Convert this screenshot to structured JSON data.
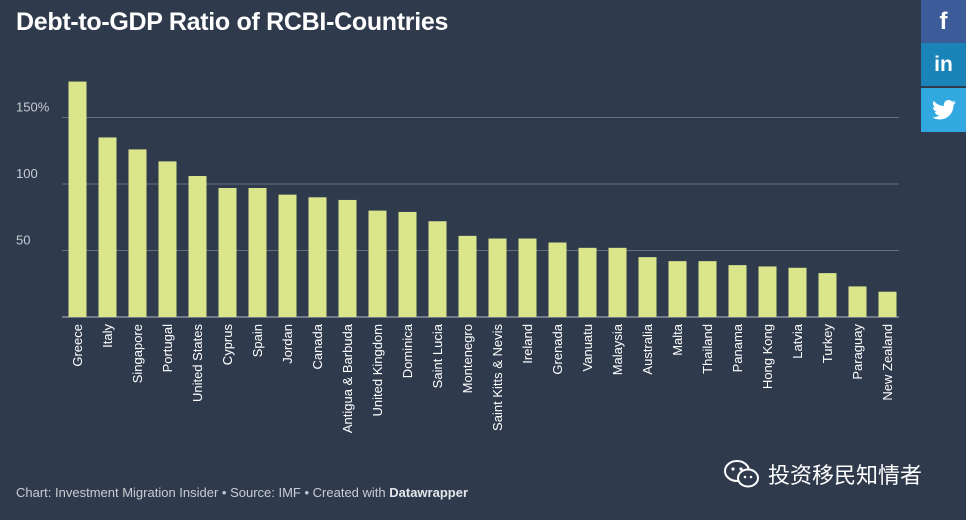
{
  "title": "Debt-to-GDP Ratio of RCBI-Countries",
  "share": {
    "facebook_glyph": "f",
    "linkedin_glyph": "in",
    "twitter_icon": "twitter-bird-icon"
  },
  "footer": {
    "prefix": "Chart: Investment Migration Insider • Source: IMF • Created with ",
    "brand": "Datawrapper"
  },
  "watermark": {
    "icon": "wechat-icon",
    "text": "投资移民知情者"
  },
  "colors": {
    "background": "#2f3b4d",
    "bar": "#dbe68c"
  },
  "chart_data": {
    "type": "bar",
    "title": "Debt-to-GDP Ratio of RCBI-Countries",
    "xlabel": "",
    "ylabel": "",
    "ylim": [
      0,
      180
    ],
    "yticks": [
      {
        "value": 50,
        "label": "50"
      },
      {
        "value": 100,
        "label": "100"
      },
      {
        "value": 150,
        "label": "150%"
      }
    ],
    "grid": true,
    "categories": [
      "Greece",
      "Italy",
      "Singapore",
      "Portugal",
      "United States",
      "Cyprus",
      "Spain",
      "Jordan",
      "Canada",
      "Antigua & Barbuda",
      "United Kingdom",
      "Dominica",
      "Saint Lucia",
      "Montenegro",
      "Saint Kitts & Nevis",
      "Ireland",
      "Grenada",
      "Vanuatu",
      "Malaysia",
      "Australia",
      "Malta",
      "Thailand",
      "Panama",
      "Hong Kong",
      "Latvia",
      "Turkey",
      "Paraguay",
      "New Zealand"
    ],
    "values": [
      177,
      135,
      126,
      117,
      106,
      97,
      97,
      92,
      90,
      88,
      80,
      79,
      72,
      61,
      59,
      59,
      56,
      52,
      52,
      45,
      42,
      42,
      39,
      38,
      37,
      33,
      23,
      19
    ]
  }
}
